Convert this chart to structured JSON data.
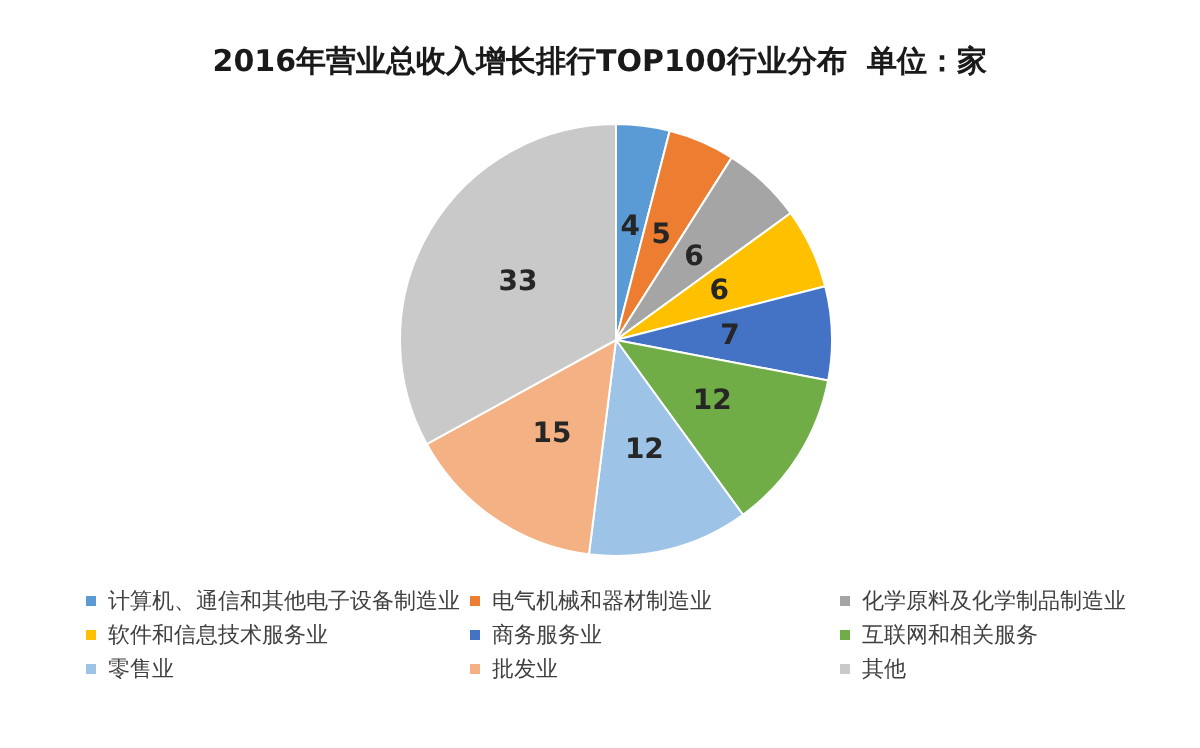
{
  "chart_data": {
    "type": "pie",
    "title": "2016年营业总收入增长排行TOP100行业分布  单位：家",
    "categories": [
      "计算机、通信和其他电子设备制造业",
      "电气机械和器材制造业",
      "化学原料及化学制品制造业",
      "软件和信息技术服务业",
      "商务服务业",
      "互联网和相关服务",
      "零售业",
      "批发业",
      "其他"
    ],
    "values": [
      4,
      5,
      6,
      6,
      7,
      12,
      12,
      15,
      33
    ],
    "colors": [
      "#5b9bd5",
      "#ed7d31",
      "#a5a5a5",
      "#ffc000",
      "#4472c4",
      "#70ad47",
      "#9dc3e6",
      "#f4b183",
      "#c9c9c9"
    ],
    "data_labels": true,
    "legend": "bottom"
  }
}
